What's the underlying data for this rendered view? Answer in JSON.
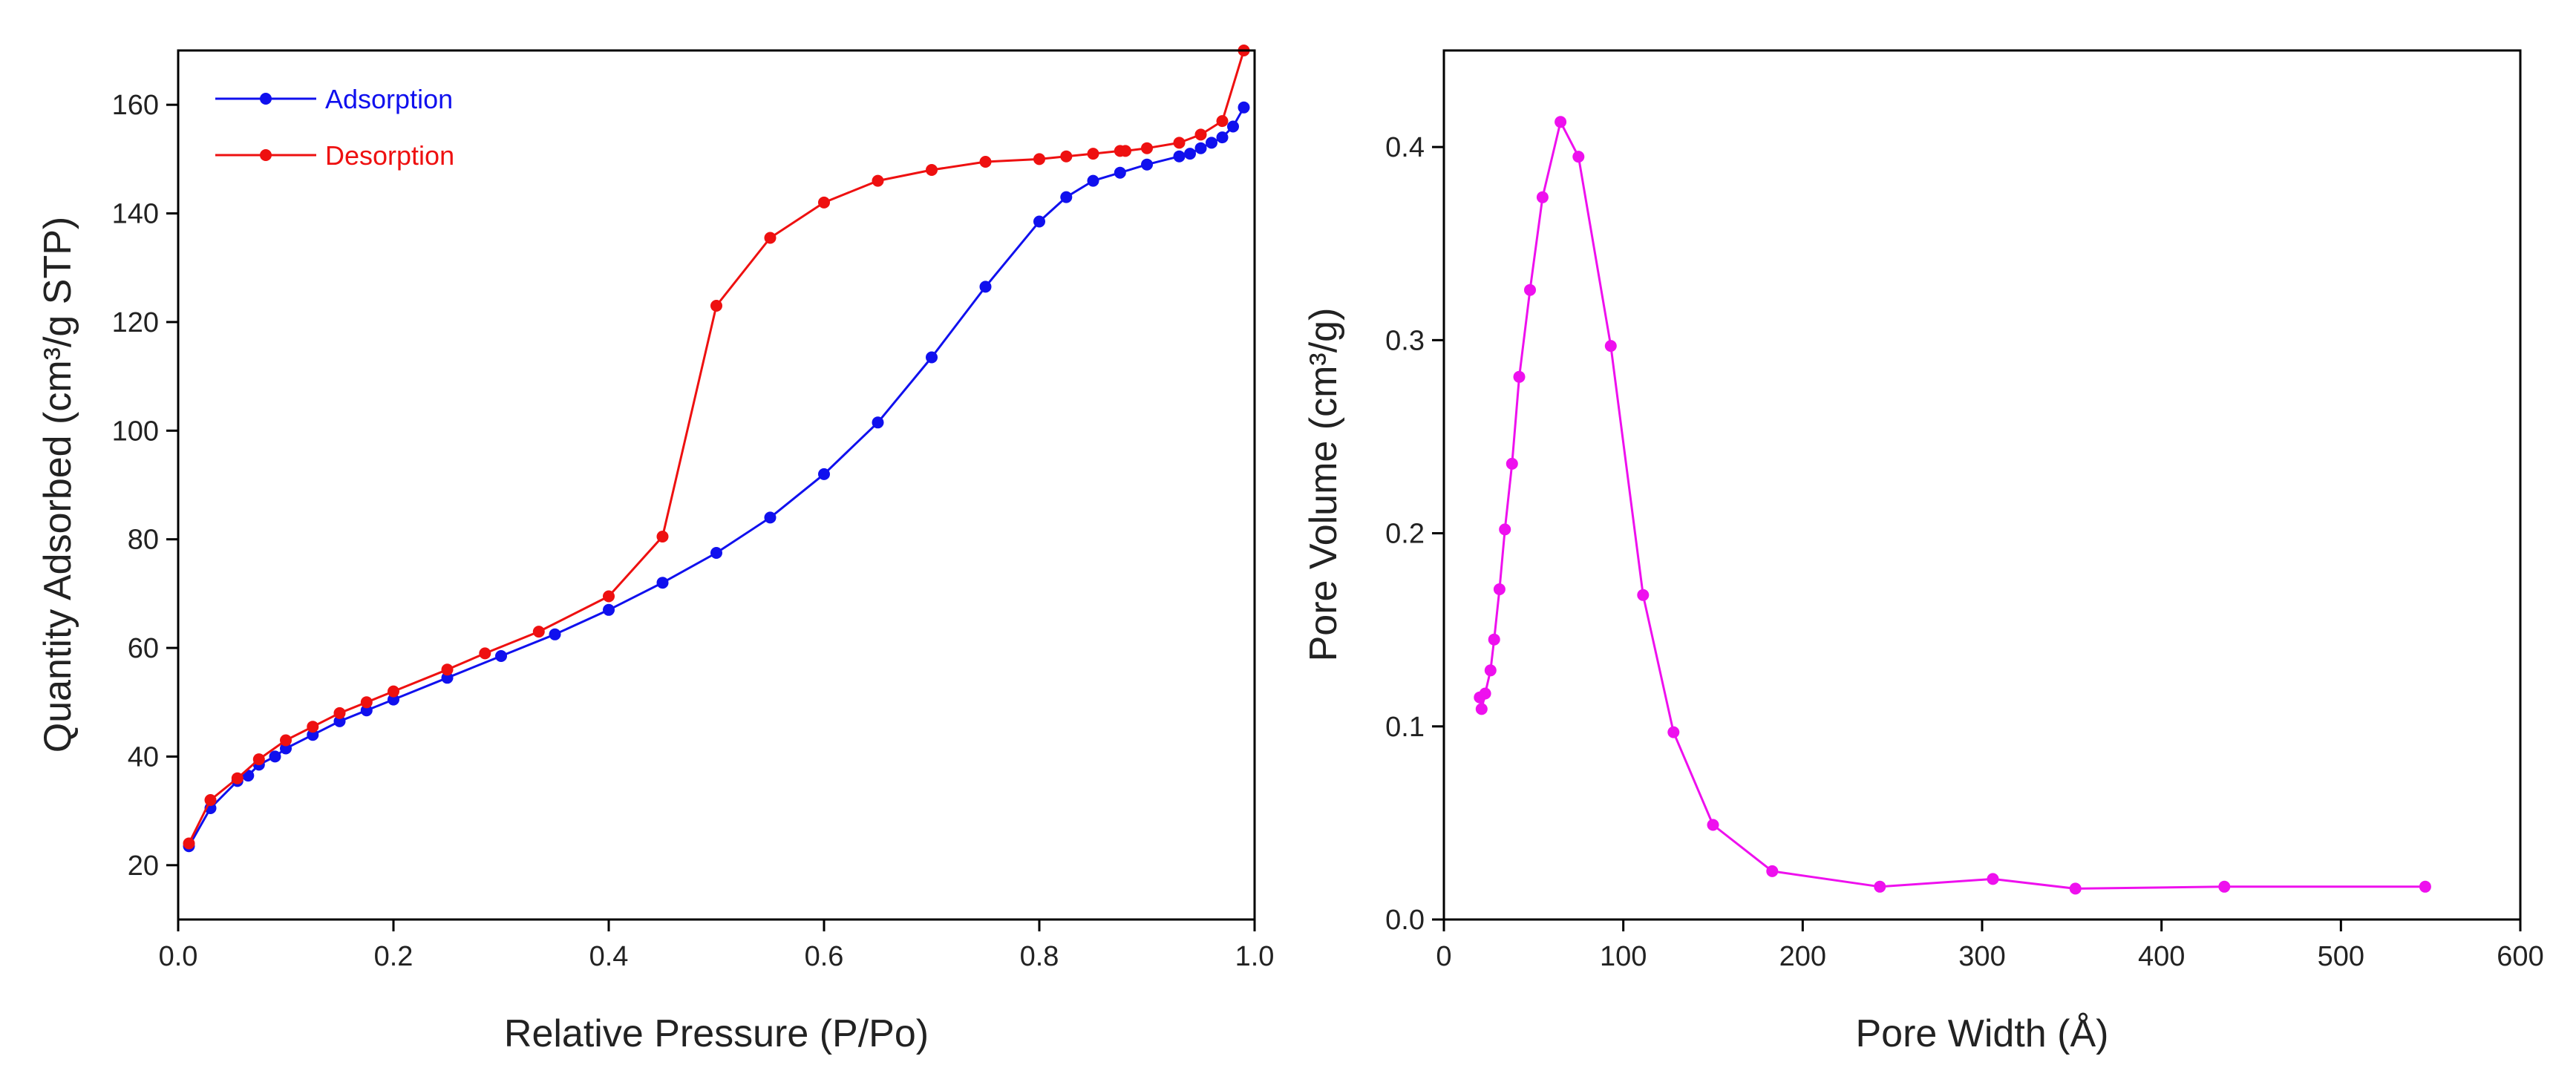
{
  "chart_data": [
    {
      "type": "line",
      "title": "",
      "xlabel": "Relative Pressure (P/Po)",
      "ylabel": "Quantity Adsorbed (cm³/g STP)",
      "xlim": [
        0.0,
        1.0
      ],
      "ylim": [
        10,
        170
      ],
      "xticks": [
        "0.0",
        "0.2",
        "0.4",
        "0.6",
        "0.8",
        "1.0"
      ],
      "yticks": [
        "20",
        "40",
        "60",
        "80",
        "100",
        "120",
        "140",
        "160"
      ],
      "legend_position": "top-left",
      "series": [
        {
          "name": "Adsorption",
          "color": "#1010ee",
          "x": [
            0.01,
            0.03,
            0.055,
            0.065,
            0.075,
            0.09,
            0.1,
            0.125,
            0.15,
            0.175,
            0.2,
            0.25,
            0.3,
            0.35,
            0.4,
            0.45,
            0.5,
            0.55,
            0.6,
            0.65,
            0.7,
            0.75,
            0.8,
            0.825,
            0.85,
            0.875,
            0.9,
            0.93,
            0.94,
            0.95,
            0.96,
            0.97,
            0.98,
            0.99
          ],
          "y": [
            23.5,
            30.5,
            35.5,
            36.5,
            38.5,
            40.0,
            41.5,
            44.0,
            46.5,
            48.5,
            50.5,
            54.5,
            58.5,
            62.5,
            67.0,
            72.0,
            77.5,
            84.0,
            92.0,
            101.5,
            113.5,
            126.5,
            138.5,
            143.0,
            146.0,
            147.5,
            149.0,
            150.5,
            151.0,
            152.0,
            153.0,
            154.0,
            156.0,
            159.5
          ]
        },
        {
          "name": "Desorption",
          "color": "#ee1010",
          "x": [
            0.01,
            0.03,
            0.055,
            0.075,
            0.1,
            0.125,
            0.15,
            0.175,
            0.2,
            0.25,
            0.285,
            0.335,
            0.4,
            0.45,
            0.5,
            0.55,
            0.6,
            0.65,
            0.7,
            0.75,
            0.8,
            0.825,
            0.85,
            0.875,
            0.88,
            0.9,
            0.93,
            0.95,
            0.97,
            0.99
          ],
          "y": [
            24.0,
            32.0,
            36.0,
            39.5,
            43.0,
            45.5,
            48.0,
            50.0,
            52.0,
            56.0,
            59.0,
            63.0,
            69.5,
            80.5,
            123.0,
            135.5,
            142.0,
            146.0,
            148.0,
            149.5,
            150.0,
            150.5,
            151.0,
            151.5,
            151.5,
            152.0,
            153.0,
            154.5,
            157.0,
            170.0
          ]
        }
      ]
    },
    {
      "type": "line",
      "title": "",
      "xlabel": "Pore Width (Å)",
      "ylabel": "Pore Volume (cm³/g)",
      "xlim": [
        0,
        600
      ],
      "ylim": [
        0.0,
        0.45
      ],
      "xticks": [
        "0",
        "100",
        "200",
        "300",
        "400",
        "500",
        "600"
      ],
      "yticks": [
        "0.0",
        "0.1",
        "0.2",
        "0.3",
        "0.4"
      ],
      "series": [
        {
          "name": "Pore Volume",
          "color": "#ee10ee",
          "x": [
            20,
            21,
            23,
            26,
            28,
            31,
            34,
            38,
            42,
            48,
            55,
            65,
            75,
            93,
            111,
            128,
            150,
            183,
            243,
            306,
            352,
            435,
            547
          ],
          "y": [
            0.115,
            0.109,
            0.117,
            0.129,
            0.145,
            0.171,
            0.202,
            0.236,
            0.281,
            0.326,
            0.374,
            0.413,
            0.395,
            0.297,
            0.168,
            0.097,
            0.049,
            0.025,
            0.017,
            0.021,
            0.016,
            0.017,
            0.017
          ]
        }
      ]
    }
  ]
}
